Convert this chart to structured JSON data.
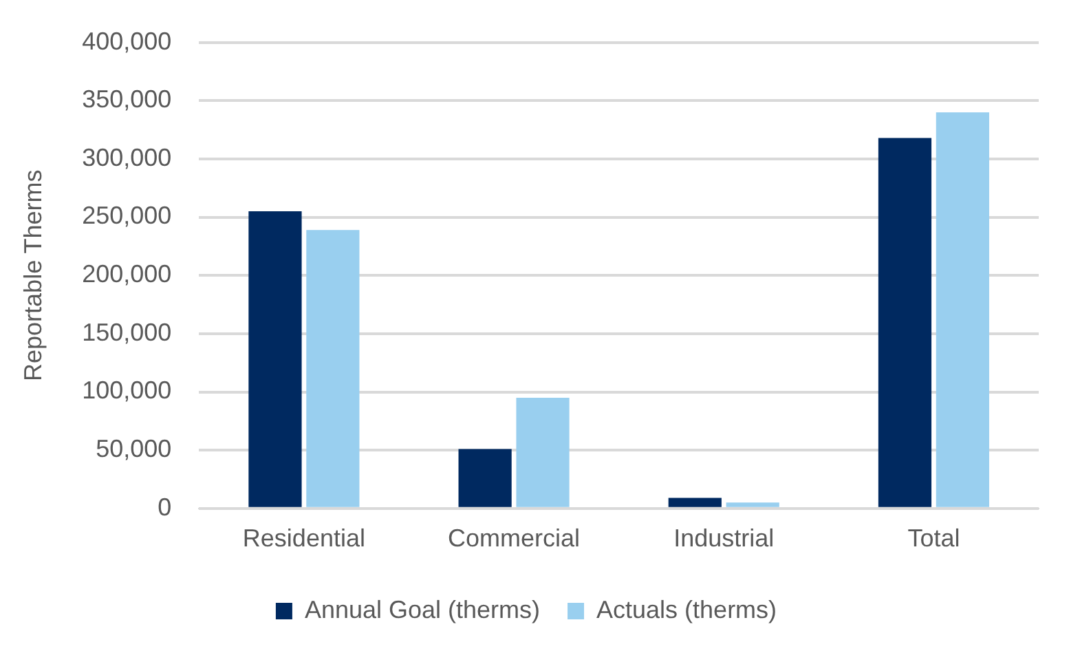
{
  "chart_data": {
    "type": "bar",
    "ylabel": "Reportable Therms",
    "categories": [
      "Residential",
      "Commercial",
      "Industrial",
      "Total"
    ],
    "series": [
      {
        "name": "Annual Goal (therms)",
        "color": "#002960",
        "values": [
          255000,
          51000,
          9000,
          318000
        ]
      },
      {
        "name": "Actuals (therms)",
        "color": "#99cfef",
        "values": [
          239000,
          95000,
          5000,
          340000
        ]
      }
    ],
    "ylim": [
      0,
      400000
    ],
    "yticks": [
      {
        "value": 0,
        "label": "0"
      },
      {
        "value": 50000,
        "label": "50,000"
      },
      {
        "value": 100000,
        "label": "100,000"
      },
      {
        "value": 150000,
        "label": "150,000"
      },
      {
        "value": 200000,
        "label": "200,000"
      },
      {
        "value": 250000,
        "label": "250,000"
      },
      {
        "value": 300000,
        "label": "300,000"
      },
      {
        "value": 350000,
        "label": "350,000"
      },
      {
        "value": 400000,
        "label": "400,000"
      }
    ],
    "grid": "y",
    "legend": "bottom"
  }
}
